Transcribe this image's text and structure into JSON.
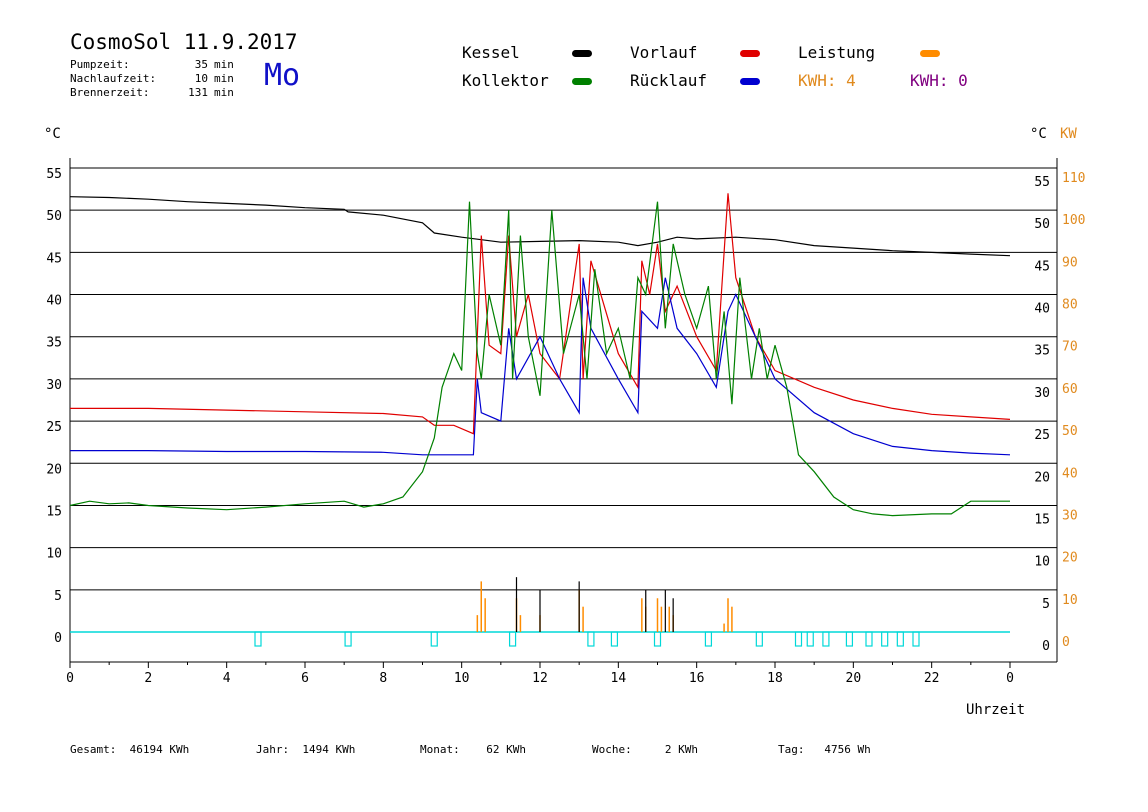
{
  "header": {
    "title": "CosmoSol 11.9.2017",
    "day": "Mo",
    "info": [
      {
        "label": "Pumpzeit:",
        "value": "35",
        "unit": "min"
      },
      {
        "label": "Nachlaufzeit:",
        "value": "10",
        "unit": "min"
      },
      {
        "label": "Brennerzeit:",
        "value": "131",
        "unit": "min"
      }
    ]
  },
  "legend": {
    "kessel": {
      "label": "Kessel",
      "color": "#000000"
    },
    "kollektor": {
      "label": "Kollektor",
      "color": "#008000"
    },
    "vorlauf": {
      "label": "Vorlauf",
      "color": "#e00000"
    },
    "ruecklauf": {
      "label": "Rücklauf",
      "color": "#0000d0"
    },
    "leistung": {
      "label": "Leistung",
      "color": "#ff8c00"
    },
    "kwh1": "KWH: 4",
    "kwh1_color": "#e08a1e",
    "kwh2": "KWH: 0",
    "kwh2_color": "#800080"
  },
  "axes": {
    "left_unit": "°C",
    "right_unit_c": "°C",
    "right_unit_kw": "KW",
    "xlabel": "Uhrzeit",
    "y_ticks": [
      "55",
      "50",
      "45",
      "40",
      "35",
      "30",
      "25",
      "20",
      "15",
      "10",
      "5",
      "0"
    ],
    "kw_ticks": [
      "110",
      "100",
      "90",
      "80",
      "70",
      "60",
      "50",
      "40",
      "30",
      "20",
      "10",
      "0"
    ],
    "x_ticks": [
      "0",
      "2",
      "4",
      "6",
      "8",
      "10",
      "12",
      "14",
      "16",
      "18",
      "20",
      "22",
      "0"
    ]
  },
  "footer": {
    "gesamt": "Gesamt:  46194 KWh",
    "jahr": "Jahr:  1494 KWh",
    "monat": "Monat:    62 KWh",
    "woche": "Woche:     2 KWh",
    "tag": "Tag:   4756 Wh"
  },
  "chart_data": {
    "type": "line",
    "x_unit": "hours",
    "xlim": [
      0,
      24
    ],
    "ylim": [
      0,
      55
    ],
    "y2lim": [
      0,
      110
    ],
    "series": [
      {
        "name": "Kessel",
        "color": "#000000",
        "x": [
          0,
          1,
          2,
          3,
          4,
          5,
          6,
          7,
          7.1,
          8,
          9,
          9.3,
          10,
          10.5,
          11,
          12,
          13,
          14,
          14.5,
          15,
          15.5,
          16,
          17,
          18,
          19,
          20,
          21,
          22,
          23,
          24
        ],
        "y": [
          51.6,
          51.5,
          51.3,
          51,
          50.8,
          50.6,
          50.3,
          50.1,
          49.8,
          49.4,
          48.5,
          47.3,
          46.8,
          46.5,
          46.2,
          46.3,
          46.4,
          46.2,
          45.8,
          46.2,
          46.8,
          46.6,
          46.8,
          46.5,
          45.8,
          45.5,
          45.2,
          45.0,
          44.8,
          44.6
        ]
      },
      {
        "name": "Vorlauf",
        "color": "#e00000",
        "x": [
          0,
          2,
          4,
          6,
          8,
          9,
          9.3,
          9.8,
          10.3,
          10.5,
          10.7,
          11,
          11.2,
          11.4,
          11.7,
          12,
          12.5,
          13,
          13.1,
          13.3,
          14,
          14.5,
          14.6,
          14.8,
          15,
          15.2,
          15.5,
          16,
          16.5,
          16.8,
          17,
          17.5,
          18,
          19,
          20,
          21,
          22,
          23,
          24
        ],
        "y": [
          26.5,
          26.5,
          26.3,
          26.1,
          25.9,
          25.5,
          24.5,
          24.5,
          23.5,
          47,
          34,
          33,
          47,
          35,
          40,
          33,
          30,
          46,
          30,
          44,
          33,
          29,
          44,
          40,
          46,
          38,
          41,
          35,
          31,
          52,
          42,
          35,
          31,
          29,
          27.5,
          26.5,
          25.8,
          25.5,
          25.2
        ]
      },
      {
        "name": "Rücklauf",
        "color": "#0000d0",
        "x": [
          0,
          2,
          4,
          6,
          8,
          9,
          9.5,
          10.3,
          10.4,
          10.5,
          11,
          11.2,
          11.4,
          12,
          12.5,
          13,
          13.1,
          13.3,
          14,
          14.5,
          14.6,
          15,
          15.2,
          15.5,
          16,
          16.5,
          16.8,
          17,
          17.5,
          18,
          19,
          20,
          21,
          22,
          23,
          24
        ],
        "y": [
          21.5,
          21.5,
          21.4,
          21.4,
          21.3,
          21,
          21,
          21,
          30,
          26,
          25,
          36,
          30,
          35,
          30,
          26,
          42,
          36,
          30,
          26,
          38,
          36,
          42,
          36,
          33,
          29,
          38,
          40,
          35,
          30,
          26,
          23.5,
          22,
          21.5,
          21.2,
          21
        ]
      },
      {
        "name": "Kollektor",
        "color": "#008000",
        "x": [
          0,
          0.5,
          1,
          1.5,
          2,
          3,
          4,
          5,
          6,
          7,
          7.5,
          8,
          8.5,
          9,
          9.3,
          9.5,
          9.8,
          10,
          10.2,
          10.4,
          10.5,
          10.7,
          11,
          11.2,
          11.3,
          11.5,
          11.7,
          12,
          12.3,
          12.6,
          13,
          13.2,
          13.4,
          13.7,
          14,
          14.3,
          14.5,
          14.7,
          15,
          15.2,
          15.4,
          15.7,
          16,
          16.3,
          16.5,
          16.7,
          16.9,
          17.1,
          17.4,
          17.6,
          17.8,
          18,
          18.3,
          18.6,
          19,
          19.5,
          20,
          20.5,
          21,
          22,
          22.5,
          23,
          24
        ],
        "y": [
          15,
          15.5,
          15.2,
          15.3,
          15,
          14.7,
          14.5,
          14.8,
          15.2,
          15.5,
          14.8,
          15.2,
          16,
          19,
          23,
          29,
          33,
          31,
          51,
          33,
          30,
          40,
          34,
          50,
          30,
          47,
          35,
          28,
          50,
          33,
          40,
          30,
          43,
          33,
          36,
          30,
          42,
          40,
          51,
          36,
          46,
          40,
          36,
          41,
          30,
          38,
          27,
          42,
          30,
          36,
          30,
          34,
          29,
          21,
          19,
          16,
          14.5,
          14,
          13.8,
          14,
          14,
          15.5,
          15.5
        ]
      }
    ],
    "leistung": {
      "name": "Leistung",
      "color": "#ff8c00",
      "x": [
        10.4,
        10.5,
        10.6,
        11.4,
        11.5,
        12.0,
        13.0,
        13.1,
        14.6,
        14.7,
        15.0,
        15.1,
        15.3,
        15.4,
        16.7,
        16.8,
        16.9
      ],
      "y": [
        2,
        6,
        4,
        4,
        2,
        2,
        5,
        3,
        4,
        3,
        4,
        3,
        3,
        2,
        1,
        4,
        3
      ]
    },
    "kessel_bars": {
      "name": "Kessel",
      "color": "#000000",
      "x": [
        11.4,
        12.0,
        13.0,
        14.7,
        15.2,
        15.4
      ],
      "y": [
        6.5,
        5,
        6,
        5,
        5,
        4
      ]
    },
    "pump_pulses_x": [
      4.8,
      7.1,
      9.3,
      11.3,
      13.3,
      13.9,
      15.0,
      16.3,
      17.6,
      18.6,
      18.9,
      19.3,
      19.9,
      20.4,
      20.8,
      21.2,
      21.6
    ]
  }
}
